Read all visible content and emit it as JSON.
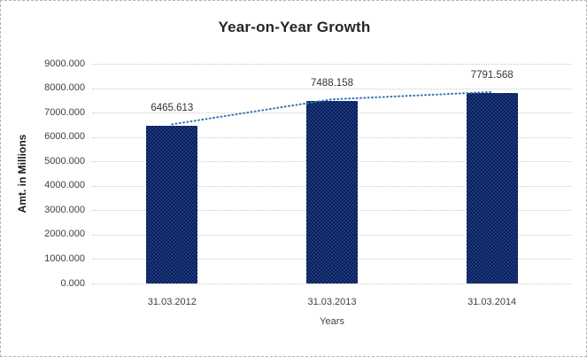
{
  "chart_data": {
    "type": "bar",
    "title": "Year-on-Year Growth",
    "xlabel": "Years",
    "ylabel": "Amt. in Millions",
    "categories": [
      "31.03.2012",
      "31.03.2013",
      "31.03.2014"
    ],
    "values": [
      6465.613,
      7488.158,
      7791.568
    ],
    "value_labels": [
      "6465.613",
      "7488.158",
      "7791.568"
    ],
    "ylim": [
      0,
      9000
    ],
    "ytick_step": 1000,
    "ytick_labels": [
      "0.000",
      "1000.000",
      "2000.000",
      "3000.000",
      "4000.000",
      "5000.000",
      "6000.000",
      "7000.000",
      "8000.000",
      "9000.000"
    ],
    "grid": "horizontal-dotted",
    "legend": "none",
    "bar_color_dark": "#0d1d4a",
    "bar_color_light": "#1b3a8c",
    "gridline_color": "#c9c9c9",
    "trendline": {
      "type": "line-through-bar-tops",
      "style": "dotted",
      "color": "#2E74B5"
    },
    "frame_border_color": "#b3b3b3",
    "background": "#ffffff"
  }
}
